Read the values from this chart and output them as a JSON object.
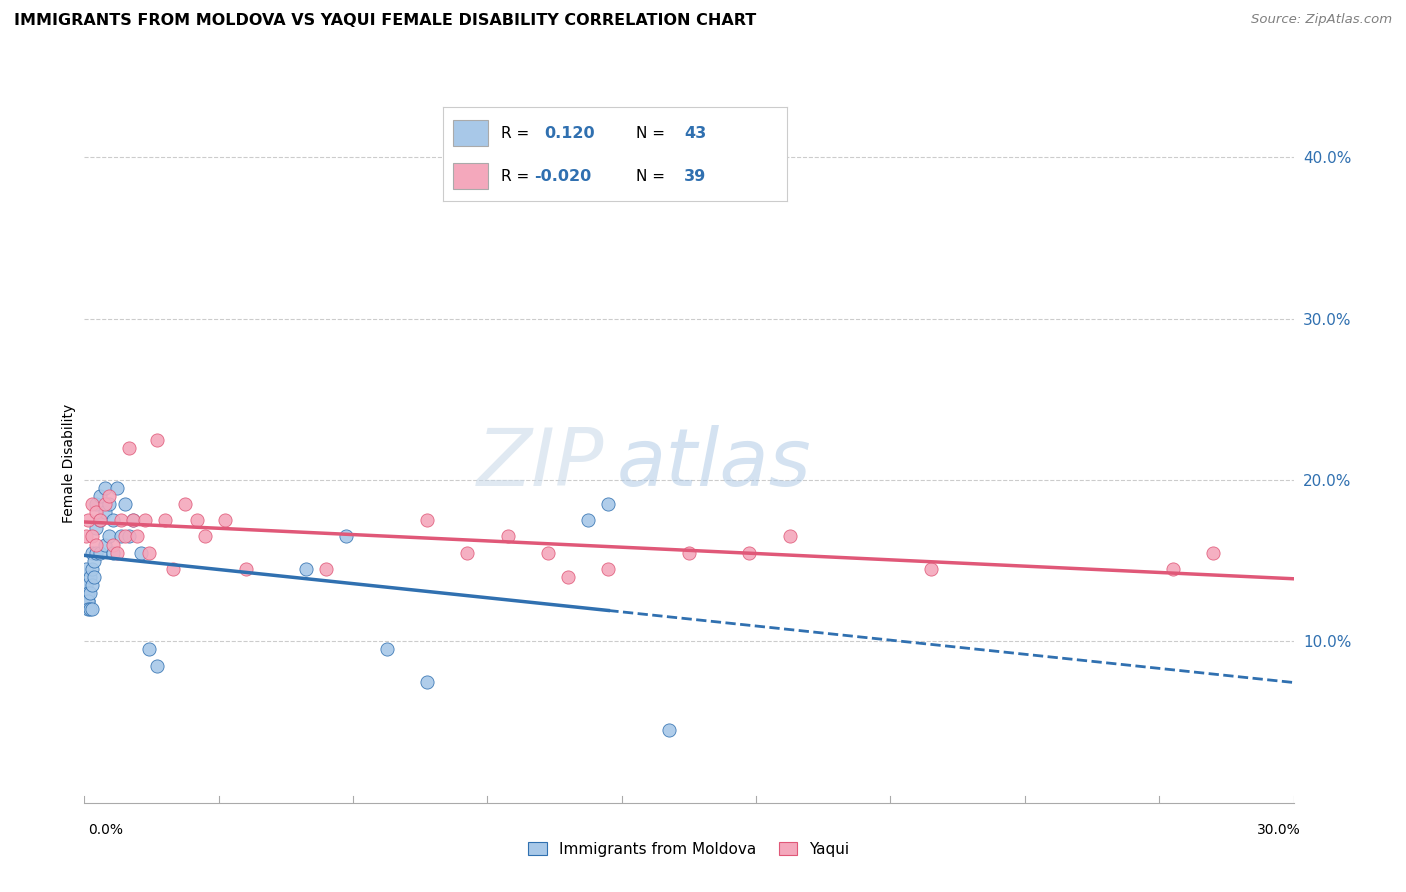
{
  "title": "IMMIGRANTS FROM MOLDOVA VS YAQUI FEMALE DISABILITY CORRELATION CHART",
  "source": "Source: ZipAtlas.com",
  "ylabel": "Female Disability",
  "xlim": [
    0.0,
    0.3
  ],
  "ylim": [
    0.0,
    0.42
  ],
  "color_blue": "#a8c8e8",
  "color_pink": "#f4a8bc",
  "trendline_blue": "#3070b0",
  "trendline_pink": "#e05878",
  "watermark_zip": "ZIP",
  "watermark_atlas": "atlas",
  "moldova_x": [
    0.0003,
    0.0005,
    0.0008,
    0.001,
    0.001,
    0.001,
    0.0015,
    0.0015,
    0.0015,
    0.002,
    0.002,
    0.002,
    0.002,
    0.0025,
    0.0025,
    0.003,
    0.003,
    0.003,
    0.004,
    0.004,
    0.004,
    0.005,
    0.005,
    0.005,
    0.006,
    0.006,
    0.007,
    0.007,
    0.008,
    0.009,
    0.01,
    0.011,
    0.012,
    0.014,
    0.016,
    0.018,
    0.055,
    0.065,
    0.075,
    0.085,
    0.125,
    0.13,
    0.145
  ],
  "moldova_y": [
    0.145,
    0.135,
    0.125,
    0.13,
    0.125,
    0.12,
    0.14,
    0.13,
    0.12,
    0.155,
    0.145,
    0.135,
    0.12,
    0.15,
    0.14,
    0.185,
    0.17,
    0.155,
    0.19,
    0.175,
    0.155,
    0.195,
    0.18,
    0.16,
    0.185,
    0.165,
    0.175,
    0.155,
    0.195,
    0.165,
    0.185,
    0.165,
    0.175,
    0.155,
    0.095,
    0.085,
    0.145,
    0.165,
    0.095,
    0.075,
    0.175,
    0.185,
    0.045
  ],
  "yaqui_x": [
    0.0005,
    0.001,
    0.002,
    0.002,
    0.003,
    0.003,
    0.004,
    0.005,
    0.006,
    0.007,
    0.008,
    0.009,
    0.01,
    0.011,
    0.012,
    0.013,
    0.015,
    0.016,
    0.018,
    0.02,
    0.022,
    0.025,
    0.028,
    0.03,
    0.035,
    0.04,
    0.06,
    0.085,
    0.095,
    0.105,
    0.115,
    0.12,
    0.13,
    0.15,
    0.165,
    0.175,
    0.21,
    0.27,
    0.28
  ],
  "yaqui_y": [
    0.165,
    0.175,
    0.185,
    0.165,
    0.18,
    0.16,
    0.175,
    0.185,
    0.19,
    0.16,
    0.155,
    0.175,
    0.165,
    0.22,
    0.175,
    0.165,
    0.175,
    0.155,
    0.225,
    0.175,
    0.145,
    0.185,
    0.175,
    0.165,
    0.175,
    0.145,
    0.145,
    0.175,
    0.155,
    0.165,
    0.155,
    0.14,
    0.145,
    0.155,
    0.155,
    0.165,
    0.145,
    0.145,
    0.155
  ]
}
